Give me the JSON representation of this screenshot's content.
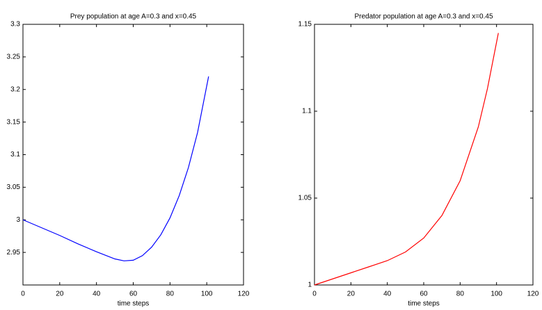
{
  "chart_data": [
    {
      "type": "line",
      "title": "Prey population at age A=0.3 and x=0.45",
      "x_label": "time steps",
      "x": [
        0,
        10,
        20,
        30,
        40,
        50,
        55,
        60,
        65,
        70,
        75,
        80,
        85,
        90,
        95,
        101
      ],
      "series": [
        {
          "color": "#0000ff",
          "values": [
            3.0,
            2.988,
            2.976,
            2.963,
            2.951,
            2.94,
            2.937,
            2.938,
            2.945,
            2.958,
            2.977,
            3.003,
            3.037,
            3.08,
            3.134,
            3.22
          ]
        }
      ],
      "xlim": [
        0,
        120
      ],
      "xticks": [
        0,
        20,
        40,
        60,
        80,
        100,
        120
      ],
      "ylim": [
        2.9,
        3.3
      ],
      "yticks": [
        2.95,
        3,
        3.05,
        3.1,
        3.15,
        3.2,
        3.25,
        3.3
      ],
      "grid": false
    },
    {
      "type": "line",
      "title": "Predator population at age A=0.3 and x=0.45",
      "x_label": "time steps",
      "x": [
        0,
        10,
        20,
        30,
        40,
        50,
        60,
        70,
        80,
        90,
        95,
        101
      ],
      "series": [
        {
          "color": "#ff0000",
          "values": [
            1.0,
            1.0035,
            1.007,
            1.0105,
            1.014,
            1.019,
            1.027,
            1.04,
            1.06,
            1.091,
            1.113,
            1.145
          ]
        }
      ],
      "xlim": [
        0,
        120
      ],
      "xticks": [
        0,
        20,
        40,
        60,
        80,
        100,
        120
      ],
      "ylim": [
        1,
        1.15
      ],
      "yticks": [
        1,
        1.05,
        1.1,
        1.15
      ],
      "grid": false
    }
  ]
}
